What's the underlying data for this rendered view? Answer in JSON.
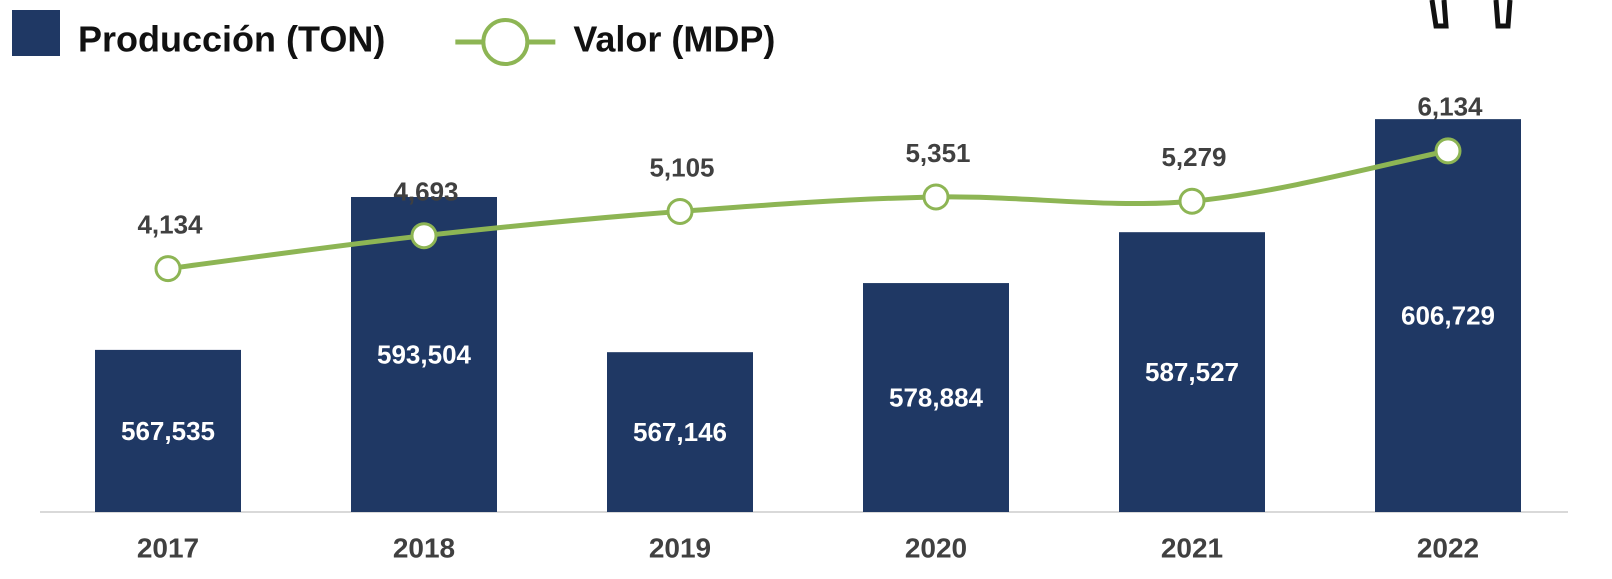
{
  "chart_data": {
    "type": "bar-line",
    "categories": [
      "2017",
      "2018",
      "2019",
      "2020",
      "2021",
      "2022"
    ],
    "series": [
      {
        "name": "Producción (TON)",
        "type": "bar",
        "color": "#1f3864",
        "values": [
          567535,
          593504,
          567146,
          578884,
          587527,
          606729
        ],
        "value_labels": [
          "567,535",
          "593,504",
          "567,146",
          "578,884",
          "587,527",
          "606,729"
        ]
      },
      {
        "name": "Valor (MDP)",
        "type": "line",
        "axis": "y2",
        "color": "#8db554",
        "values": [
          4134,
          4693,
          5105,
          5351,
          5279,
          6134
        ],
        "value_labels": [
          "4,134",
          "4,693",
          "5,105",
          "5,351",
          "5,279",
          "6,134"
        ]
      }
    ],
    "ylim": [
      540000,
      620000
    ],
    "y2lim": [
      0,
      8000
    ],
    "legend": "top-left"
  }
}
